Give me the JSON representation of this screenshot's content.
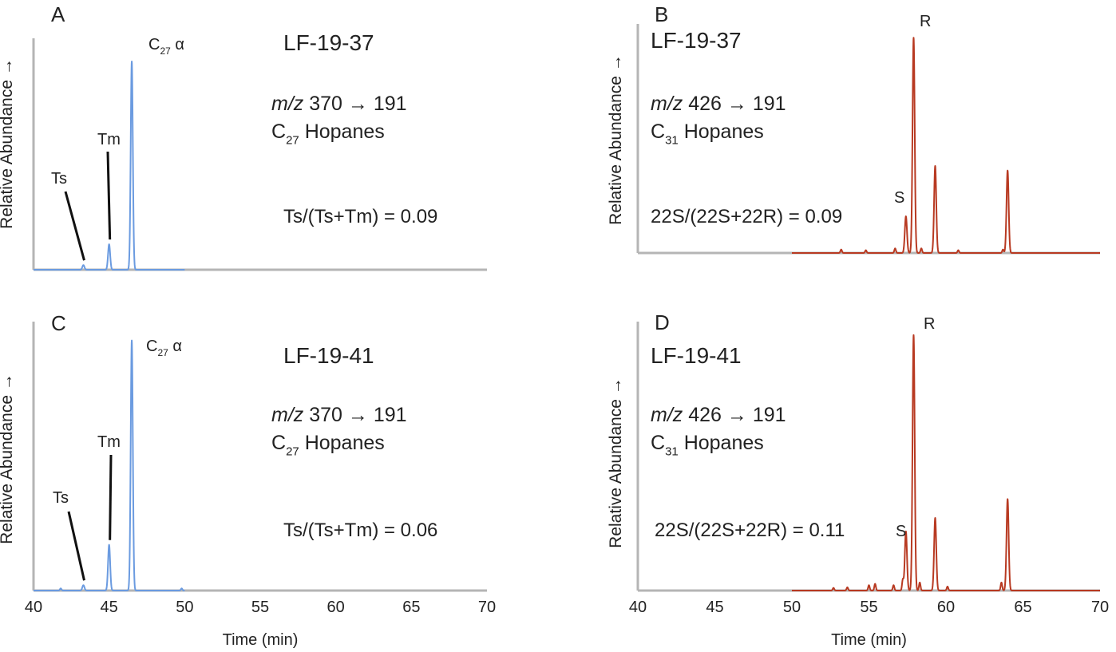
{
  "colors": {
    "blue": "#6b9be0",
    "red": "#b83a22",
    "axis": "#b5b5b5",
    "text": "#222222"
  },
  "chart_data": [
    {
      "panel": "A",
      "type": "line",
      "sample": "LF-19-37",
      "transition_prefix": "m/z",
      "transition": "370 → 191",
      "compound": {
        "pre": "C",
        "sub": "27",
        "post": " Hopanes"
      },
      "ratio_text": "Ts/(Ts+Tm) = 0.09",
      "ylabel": "Relative Abundance →",
      "xlabel": "",
      "xlim": [
        40,
        70
      ],
      "xticks": [],
      "trace_range": [
        40,
        50
      ],
      "peaks": [
        {
          "label": "Ts",
          "x": 43.3,
          "y": 0.02
        },
        {
          "label": "Tm",
          "x": 45.0,
          "y": 0.11
        },
        {
          "label": "C27 α",
          "label_pre": "C",
          "label_sub": "27",
          "label_post": " α",
          "x": 46.5,
          "y": 0.9
        }
      ]
    },
    {
      "panel": "B",
      "type": "line",
      "sample": "LF-19-37",
      "transition_prefix": "m/z",
      "transition": "426 → 191",
      "compound": {
        "pre": "C",
        "sub": "31",
        "post": " Hopanes"
      },
      "ratio_text": "22S/(22S+22R) = 0.09",
      "ylabel": "Relative Abundance →",
      "xlabel": "",
      "xlim": [
        40,
        70
      ],
      "xticks": [],
      "trace_range": [
        50,
        70
      ],
      "peaks": [
        {
          "label": "S",
          "x": 57.4,
          "y": 0.16
        },
        {
          "label": "R",
          "x": 57.9,
          "y": 0.94
        },
        {
          "label": "",
          "x": 59.3,
          "y": 0.38
        },
        {
          "label": "",
          "x": 64.0,
          "y": 0.36
        }
      ],
      "minor_peaks": [
        {
          "x": 53.2,
          "y": 0.015
        },
        {
          "x": 54.8,
          "y": 0.012
        },
        {
          "x": 56.7,
          "y": 0.02
        },
        {
          "x": 58.4,
          "y": 0.02
        },
        {
          "x": 60.8,
          "y": 0.012
        },
        {
          "x": 63.7,
          "y": 0.015
        }
      ]
    },
    {
      "panel": "C",
      "type": "line",
      "sample": "LF-19-41",
      "transition_prefix": "m/z",
      "transition": "370 → 191",
      "compound": {
        "pre": "C",
        "sub": "27",
        "post": " Hopanes"
      },
      "ratio_text": "Ts/(Ts+Tm) = 0.06",
      "ylabel": "Relative Abundance →",
      "xlabel": "Time (min)",
      "xlim": [
        40,
        70
      ],
      "xticks": [
        40,
        45,
        50,
        55,
        60,
        65,
        70
      ],
      "trace_range": [
        40,
        50
      ],
      "peaks": [
        {
          "label": "Ts",
          "x": 43.3,
          "y": 0.02
        },
        {
          "label": "Tm",
          "x": 45.0,
          "y": 0.17
        },
        {
          "label": "C27 α",
          "label_pre": "C",
          "label_sub": "27",
          "label_post": " α",
          "x": 46.5,
          "y": 0.93
        }
      ],
      "minor_peaks": [
        {
          "x": 41.8,
          "y": 0.008
        },
        {
          "x": 49.8,
          "y": 0.008
        }
      ]
    },
    {
      "panel": "D",
      "type": "line",
      "sample": "LF-19-41",
      "transition_prefix": "m/z",
      "transition": "426 → 191",
      "compound": {
        "pre": "C",
        "sub": "31",
        "post": " Hopanes"
      },
      "ratio_text": "22S/(22S+22R) = 0.11",
      "ylabel": "Relative Abundance →",
      "xlabel": "Time (min)",
      "xlim": [
        40,
        70
      ],
      "xticks": [
        40,
        45,
        50,
        55,
        60,
        65,
        70
      ],
      "trace_range": [
        50,
        70
      ],
      "peaks": [
        {
          "label": "S",
          "x": 57.4,
          "y": 0.22
        },
        {
          "label": "R",
          "x": 57.9,
          "y": 0.95
        },
        {
          "label": "",
          "x": 59.3,
          "y": 0.27
        },
        {
          "label": "",
          "x": 64.0,
          "y": 0.34
        }
      ],
      "minor_peaks": [
        {
          "x": 52.7,
          "y": 0.01
        },
        {
          "x": 53.6,
          "y": 0.012
        },
        {
          "x": 55.0,
          "y": 0.02
        },
        {
          "x": 55.4,
          "y": 0.025
        },
        {
          "x": 56.6,
          "y": 0.02
        },
        {
          "x": 57.2,
          "y": 0.04
        },
        {
          "x": 58.3,
          "y": 0.03
        },
        {
          "x": 60.1,
          "y": 0.015
        },
        {
          "x": 63.6,
          "y": 0.03
        }
      ]
    }
  ]
}
